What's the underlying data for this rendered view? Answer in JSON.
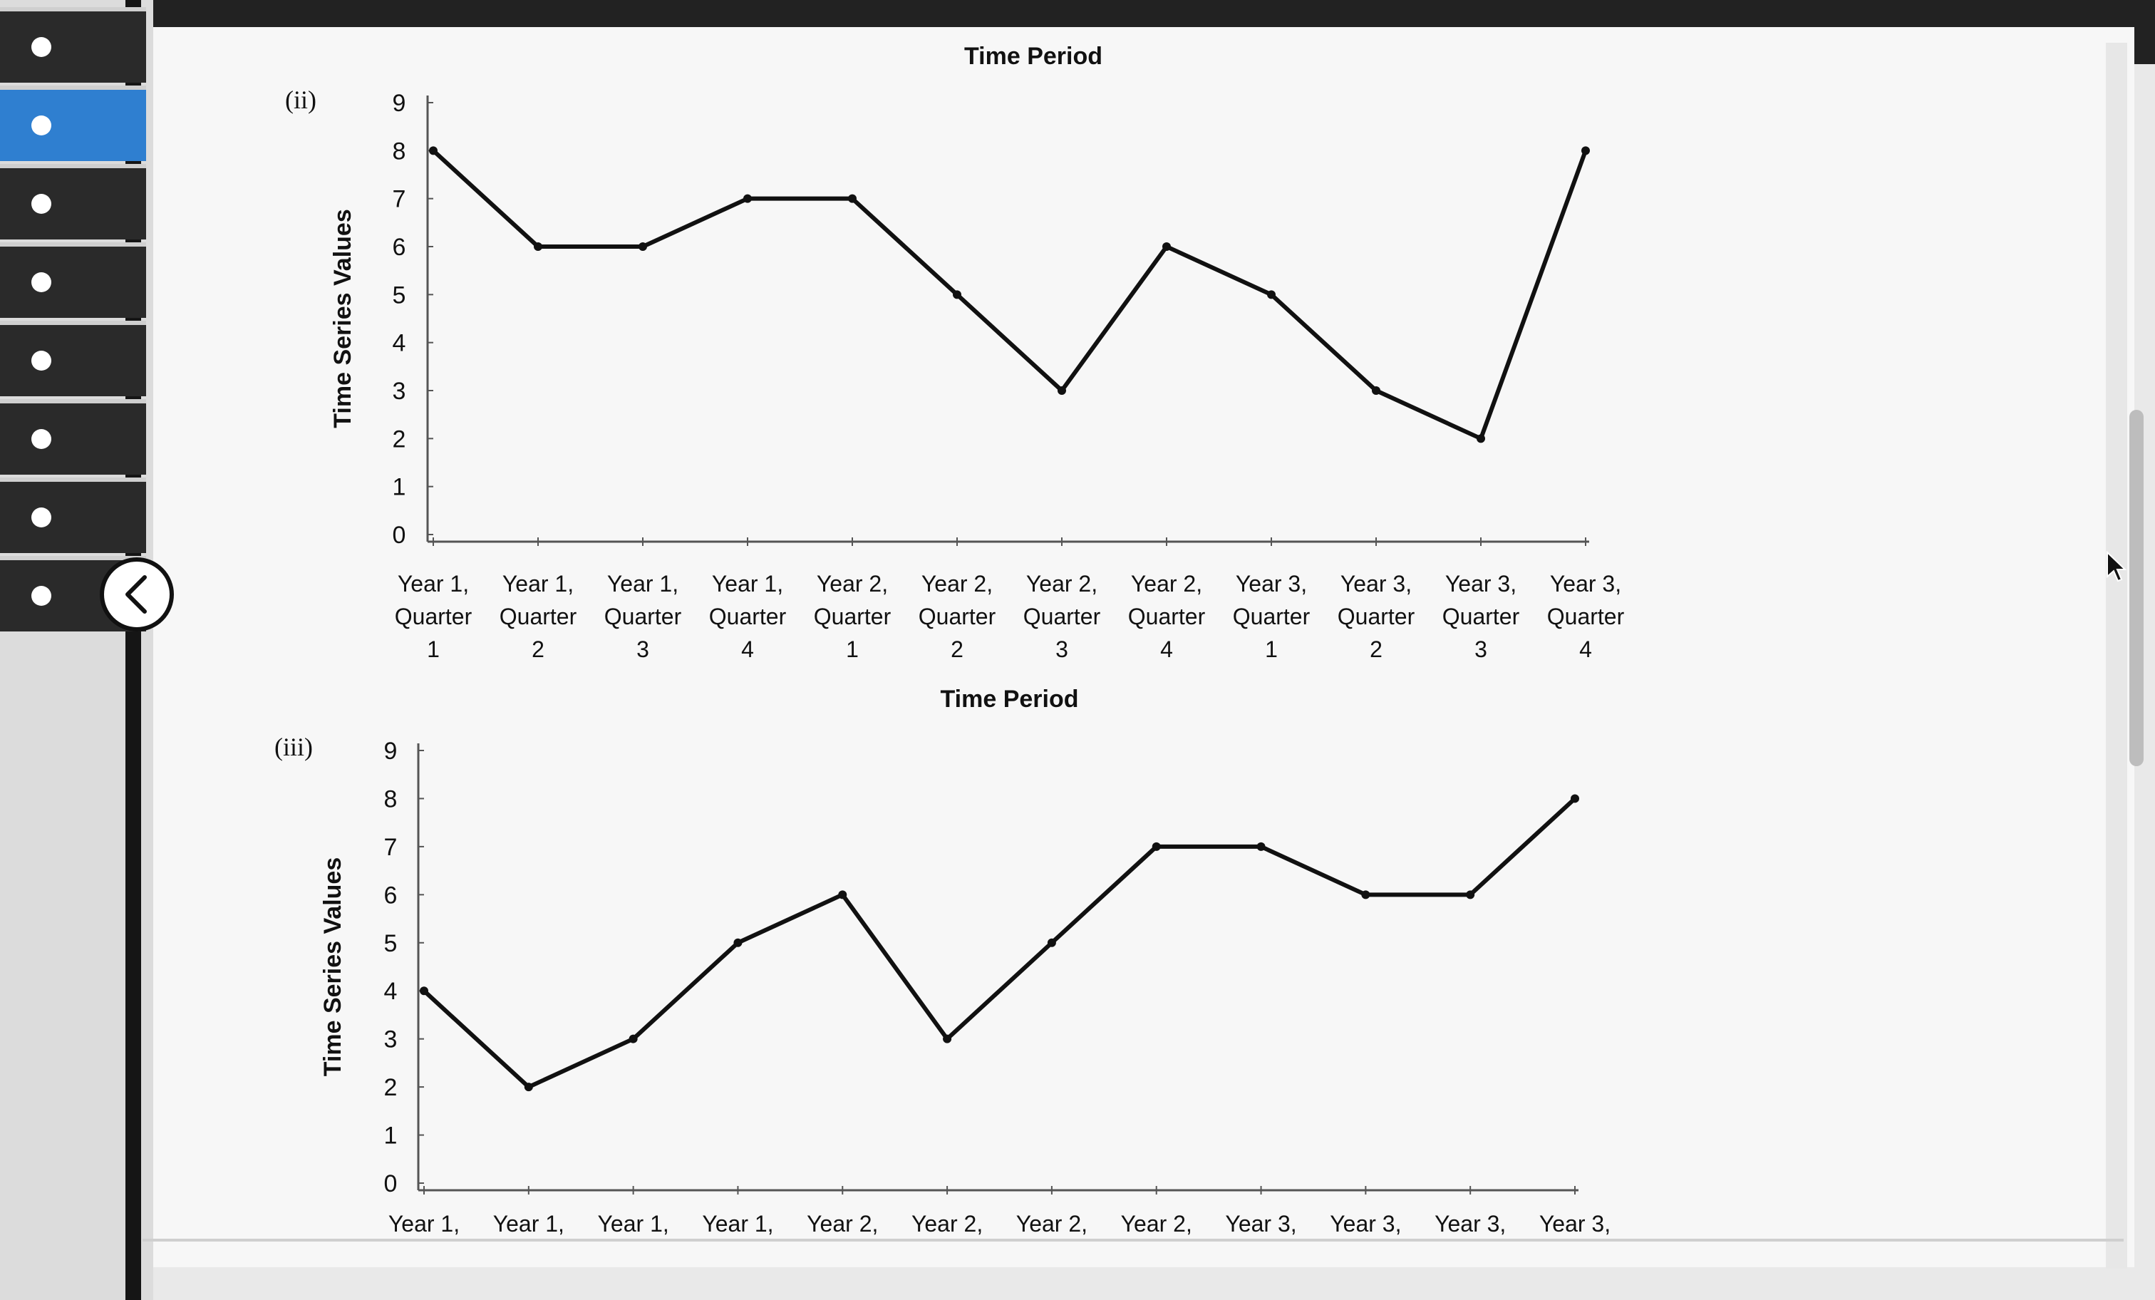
{
  "sidebar": {
    "items": [
      {
        "id": "nav-item-1",
        "active": false
      },
      {
        "id": "nav-item-2",
        "active": true
      },
      {
        "id": "nav-item-3",
        "active": false
      },
      {
        "id": "nav-item-4",
        "active": false
      },
      {
        "id": "nav-item-5",
        "active": false
      },
      {
        "id": "nav-item-6",
        "active": false
      },
      {
        "id": "nav-item-7",
        "active": false
      },
      {
        "id": "nav-item-8",
        "active": false
      }
    ],
    "collapse_icon": "chevron-left-icon"
  },
  "top_axis_title": "Time Period",
  "chart_data": [
    {
      "type": "line",
      "panel_label": "(ii)",
      "ylabel": "Time Series Values",
      "xlabel": "Time Period",
      "ylim": [
        0,
        9
      ],
      "yticks": [
        "0",
        "1",
        "2",
        "3",
        "4",
        "5",
        "6",
        "7",
        "8",
        "9"
      ],
      "categories": [
        "Year 1, Quarter 1",
        "Year 1, Quarter 2",
        "Year 1, Quarter 3",
        "Year 1, Quarter 4",
        "Year 2, Quarter 1",
        "Year 2, Quarter 2",
        "Year 2, Quarter 3",
        "Year 2, Quarter 4",
        "Year 3, Quarter 1",
        "Year 3, Quarter 2",
        "Year 3, Quarter 3",
        "Year 3, Quarter 4"
      ],
      "values": [
        8.0,
        6.0,
        6.0,
        7.0,
        7.0,
        5.0,
        3.0,
        6.0,
        5.0,
        3.0,
        2.0,
        8.0
      ]
    },
    {
      "type": "line",
      "panel_label": "(iii)",
      "ylabel": "Time Series Values",
      "xlabel": "",
      "ylim": [
        0,
        9
      ],
      "yticks": [
        "0",
        "1",
        "2",
        "3",
        "4",
        "5",
        "6",
        "7",
        "8",
        "9"
      ],
      "categories": [
        "Year 1,",
        "Year 1,",
        "Year 1,",
        "Year 1,",
        "Year 2,",
        "Year 2,",
        "Year 2,",
        "Year 2,",
        "Year 3,",
        "Year 3,",
        "Year 3,",
        "Year 3,"
      ],
      "values": [
        4.0,
        2.0,
        3.0,
        5.0,
        6.0,
        3.0,
        5.0,
        7.0,
        7.0,
        6.0,
        6.0,
        8.0
      ]
    }
  ]
}
